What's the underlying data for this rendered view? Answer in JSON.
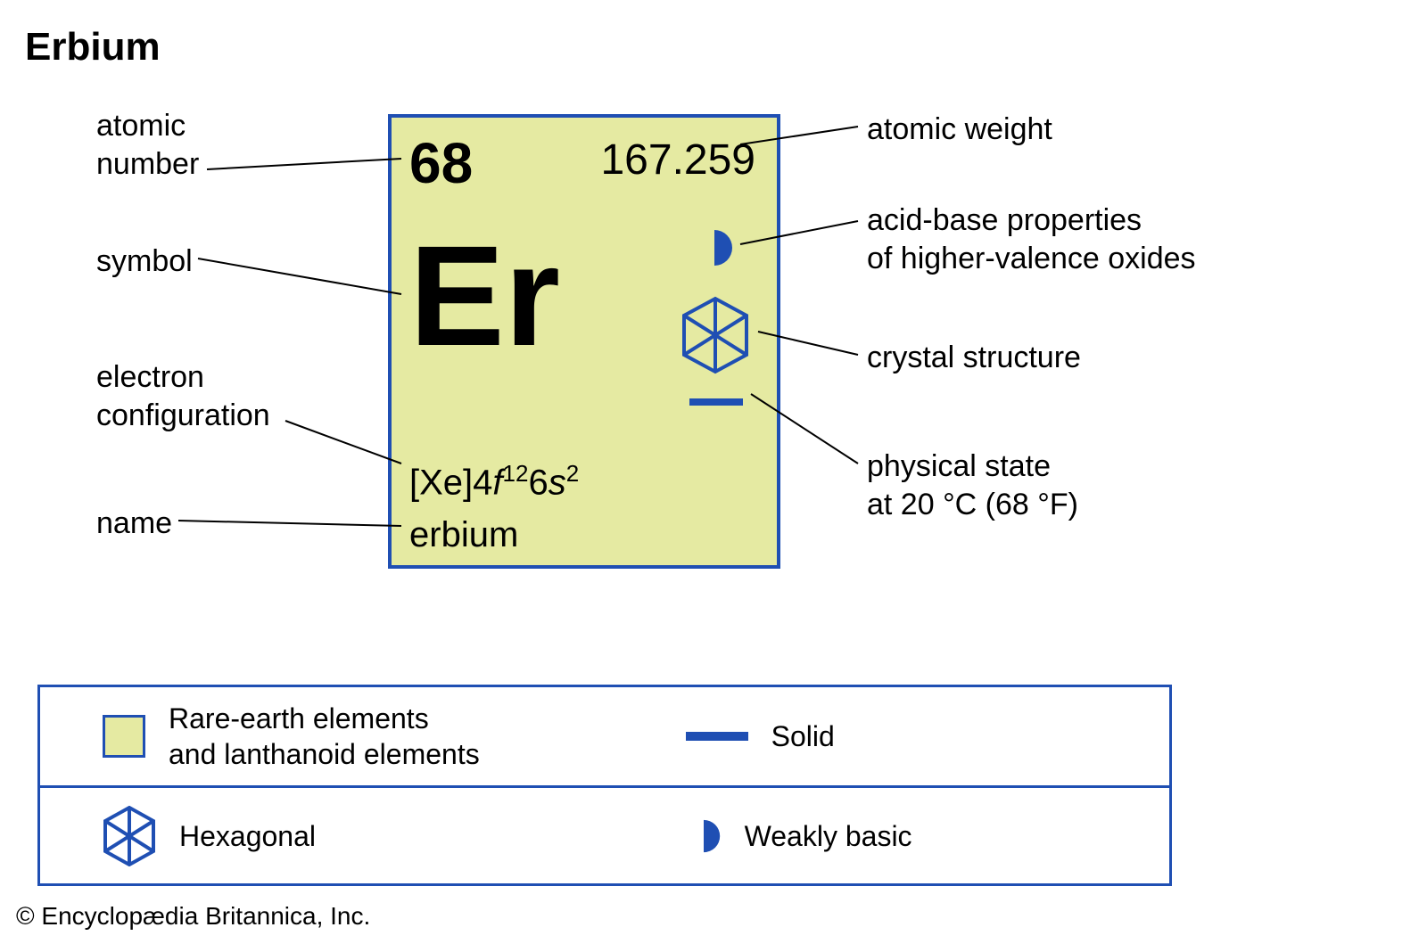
{
  "title": "Erbium",
  "element": {
    "atomic_number": "68",
    "atomic_weight": "167.259",
    "symbol": "Er",
    "name": "erbium",
    "electron_config": {
      "core": "[Xe]",
      "shell1_letter": "f",
      "shell1_n": "4",
      "shell1_sup": "12",
      "shell2_letter": "s",
      "shell2_n": "6",
      "shell2_sup": "2"
    }
  },
  "colors": {
    "box_border": "#1f4fb3",
    "box_bg": "#e5eaa2",
    "icon_blue": "#1f4fb3",
    "line": "#000000",
    "legend_border": "#1f4fb3"
  },
  "callouts": {
    "atomic_number": "atomic\nnumber",
    "symbol": "symbol",
    "electron_config": "electron\nconfiguration",
    "name": "name",
    "atomic_weight": "atomic weight",
    "acid_base": "acid-base properties\nof higher-valence oxides",
    "crystal": "crystal structure",
    "physical_state": "physical state\nat 20 °C (68 °F)"
  },
  "legend": {
    "rare_earth": "Rare-earth elements\nand lanthanoid elements",
    "solid": "Solid",
    "hexagonal": "Hexagonal",
    "weakly_basic": "Weakly basic"
  },
  "copyright": "© Encyclopædia Britannica, Inc."
}
